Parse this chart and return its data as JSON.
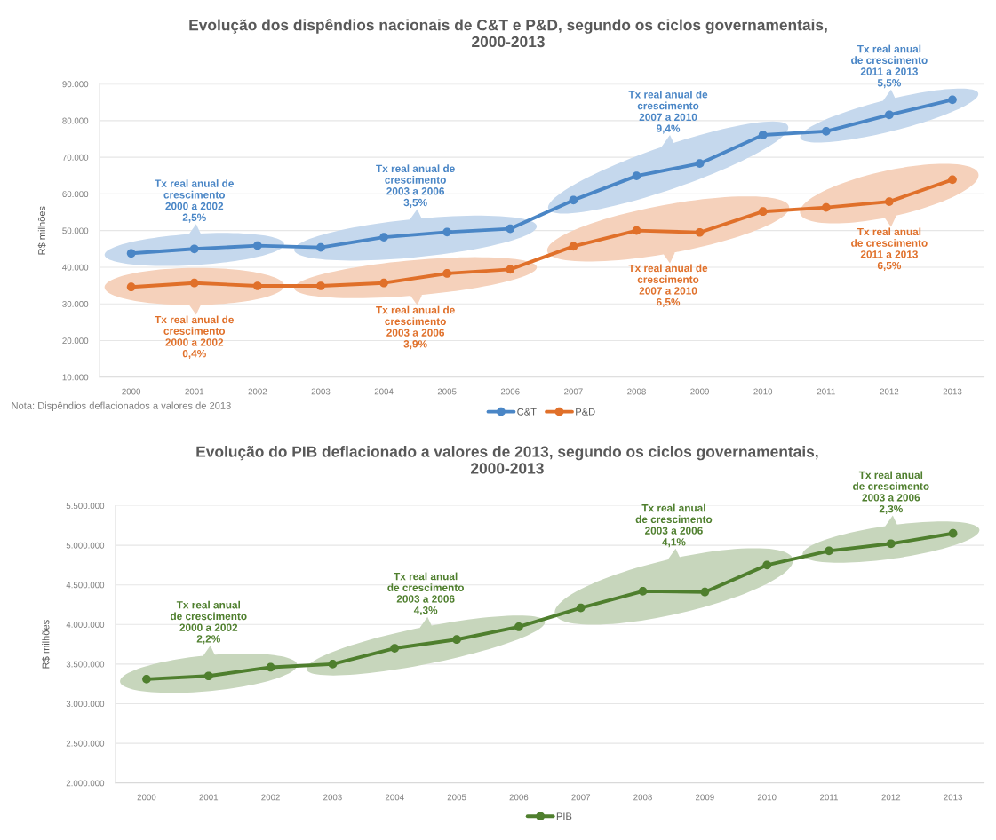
{
  "chart_data": [
    {
      "type": "line",
      "title": "Evolução dos dispêndios nacionais de C&T e P&D, segundo os ciclos governamentais,\n2000-2013",
      "ylabel": "R$ milhões",
      "categories": [
        "2000",
        "2001",
        "2002",
        "2003",
        "2004",
        "2005",
        "2006",
        "2007",
        "2008",
        "2009",
        "2010",
        "2011",
        "2012",
        "2013"
      ],
      "series": [
        {
          "name": "C&T",
          "color": "#4a86c6",
          "values": [
            43800,
            45000,
            45900,
            45400,
            48200,
            49600,
            50500,
            58300,
            64900,
            68300,
            76100,
            77100,
            81600,
            85700
          ]
        },
        {
          "name": "P&D",
          "color": "#e0702a",
          "values": [
            34600,
            35700,
            34900,
            34900,
            35700,
            38300,
            39400,
            45700,
            50000,
            49500,
            55200,
            56300,
            57900,
            63900
          ]
        }
      ],
      "ylim": [
        10000,
        90000
      ],
      "yticks": [
        {
          "value": 10000,
          "label": "10.000"
        },
        {
          "value": 20000,
          "label": "20.000"
        },
        {
          "value": 30000,
          "label": "30.000"
        },
        {
          "value": 40000,
          "label": "40.000"
        },
        {
          "value": 50000,
          "label": "50.000"
        },
        {
          "value": 60000,
          "label": "60.000"
        },
        {
          "value": 70000,
          "label": "70.000"
        },
        {
          "value": 80000,
          "label": "80.000"
        },
        {
          "value": 90000,
          "label": "90.000"
        }
      ],
      "grid": "y",
      "legend": "bottom",
      "marker": "circle",
      "annotations": [
        "Tx real anual de\ncrescimento\n2000 a 2002\n2,5%",
        "Tx real anual de\ncrescimento\n2003 a 2006\n3,5%",
        "Tx real anual de\ncrescimento\n2007 a 2010\n9,4%",
        "Tx real anual\nde crescimento\n2011 a 2013\n5,5%",
        "Tx real anual de\ncrescimento\n2000 a 2002\n0,4%",
        "Tx real anual de\ncrescimento\n2003 a 2006\n3,9%",
        "Tx real anual de\ncrescimento\n2007 a 2010\n6,5%",
        "Tx real anual\nde crescimento\n2011 a 2013\n6,5%",
        "Nota: Dispêndios deflacionados a valores de 2013"
      ]
    },
    {
      "type": "line",
      "title": "Evolução do PIB deflacionado a valores de 2013, segundo os ciclos governamentais,\n2000-2013",
      "ylabel": "R$ milhões",
      "categories": [
        "2000",
        "2001",
        "2002",
        "2003",
        "2004",
        "2005",
        "2006",
        "2007",
        "2008",
        "2009",
        "2010",
        "2011",
        "2012",
        "2013"
      ],
      "series": [
        {
          "name": "PIB",
          "color": "#4f7f2e",
          "values": [
            3310000,
            3350000,
            3460000,
            3500000,
            3700000,
            3810000,
            3970000,
            4210000,
            4420000,
            4410000,
            4750000,
            4930000,
            5020000,
            5150000
          ]
        }
      ],
      "ylim": [
        2000000,
        5500000
      ],
      "yticks": [
        {
          "value": 2000000,
          "label": "2.000.000"
        },
        {
          "value": 2500000,
          "label": "2.500.000"
        },
        {
          "value": 3000000,
          "label": "3.000.000"
        },
        {
          "value": 3500000,
          "label": "3.500.000"
        },
        {
          "value": 4000000,
          "label": "4.000.000"
        },
        {
          "value": 4500000,
          "label": "4.500.000"
        },
        {
          "value": 5000000,
          "label": "5.000.000"
        },
        {
          "value": 5500000,
          "label": "5.500.000"
        }
      ],
      "grid": "y",
      "legend": "bottom",
      "marker": "circle",
      "annotations": [
        "Tx real anual\nde crescimento\n2000 a 2002\n2,2%",
        "Tx real anual\nde crescimento\n2003 a 2006\n4,3%",
        "Tx real anual\nde crescimento\n2003 a 2006\n4,1%",
        "Tx real anual\nde crescimento\n2003 a 2006\n2,3%"
      ]
    }
  ]
}
